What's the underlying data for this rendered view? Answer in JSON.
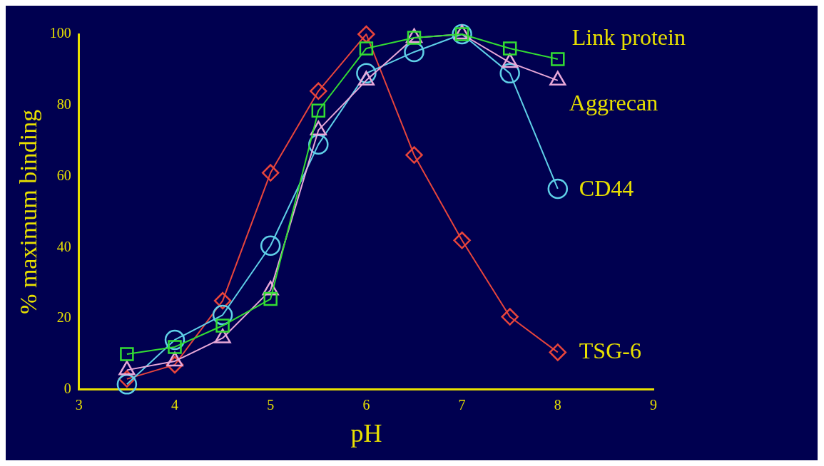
{
  "chart_data": {
    "type": "line",
    "xlabel": "pH",
    "ylabel": "% maximum binding",
    "x": [
      3.5,
      4,
      4.5,
      5,
      5.5,
      6,
      6.5,
      7,
      7.5,
      8
    ],
    "series": [
      {
        "name": "Link protein",
        "color": "#33dd33",
        "marker": "square",
        "values": [
          10,
          12,
          18,
          25.5,
          78.5,
          96,
          99,
          100,
          96,
          93
        ]
      },
      {
        "name": "Aggrecan",
        "color": "#e8a8d8",
        "marker": "triangle",
        "values": [
          5.5,
          8,
          14.5,
          28,
          73,
          87,
          99,
          100,
          92,
          87
        ]
      },
      {
        "name": "CD44",
        "color": "#5fd0e8",
        "marker": "circle",
        "values": [
          1.5,
          14,
          21,
          40.5,
          69,
          89,
          95,
          100,
          89,
          56.5
        ]
      },
      {
        "name": "TSG-6",
        "color": "#e8453c",
        "marker": "diamond",
        "values": [
          3,
          7,
          25,
          61,
          84,
          100,
          66,
          42,
          20.5,
          10.5
        ]
      }
    ],
    "xlim": [
      3,
      9
    ],
    "xticks": [
      3,
      4,
      5,
      6,
      7,
      8,
      9
    ],
    "ylim": [
      0,
      100
    ],
    "yticks": [
      0,
      20,
      40,
      60,
      80,
      100
    ],
    "grid": false,
    "legend": false,
    "line_style": "solid"
  }
}
